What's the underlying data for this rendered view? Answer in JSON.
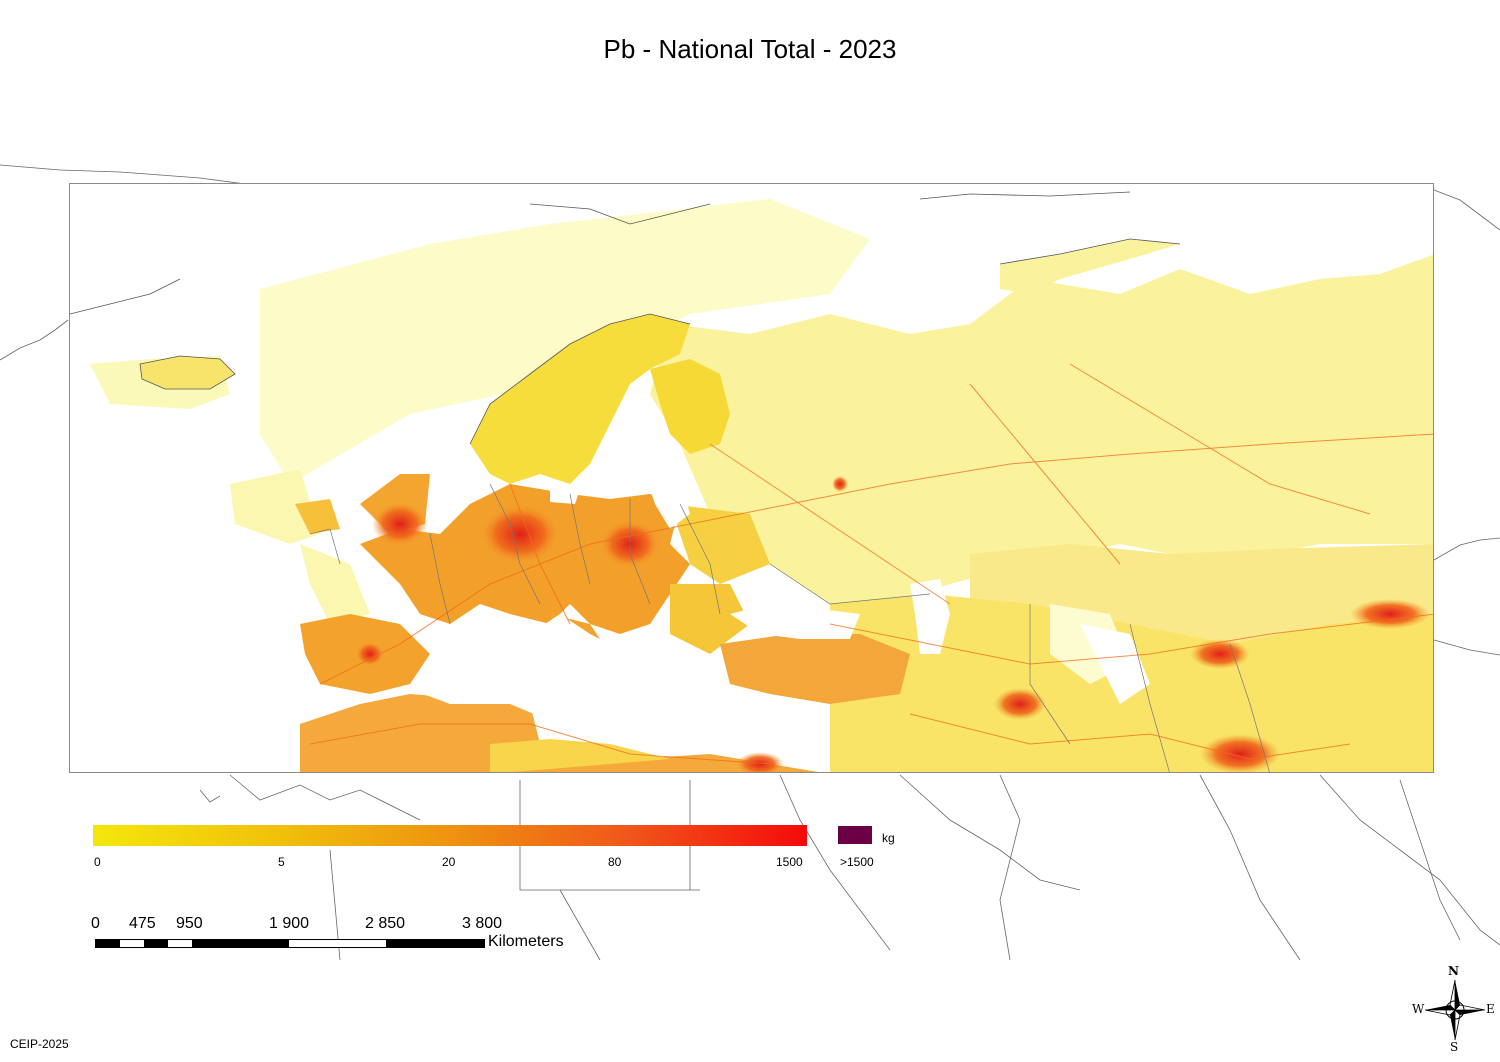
{
  "title": "Pb - National Total - 2023",
  "legend": {
    "unit": "kg",
    "ticks": [
      "0",
      "5",
      "20",
      "80",
      "1500"
    ],
    "overflow_label": ">1500",
    "colors": {
      "low": "#f4e60c",
      "mid": "#ee9310",
      "high": "#f50a0a",
      "over": "#6b0045"
    }
  },
  "scale": {
    "labels": [
      "0",
      "475",
      "950",
      "1 900",
      "2 850",
      "3 800"
    ],
    "units": "Kilometers"
  },
  "compass": {
    "n": "N",
    "s": "S",
    "e": "E",
    "w": "W"
  },
  "footer": "CEIP-2025"
}
